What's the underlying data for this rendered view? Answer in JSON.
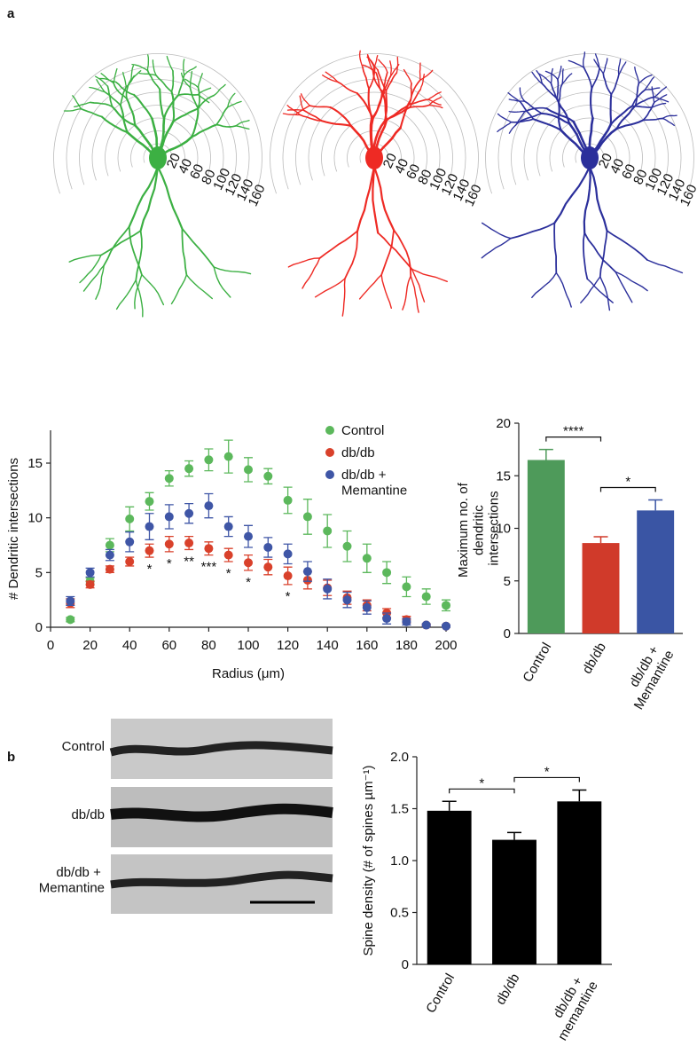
{
  "panel_labels": [
    "a",
    "b"
  ],
  "sholl_ring_labels": [
    20,
    40,
    60,
    80,
    100,
    120,
    140,
    160
  ],
  "micrograph_labels": [
    "Control",
    "db/db",
    "db/db + Memantine"
  ],
  "chart_data": [
    {
      "type": "scatter",
      "xlabel": "Radius (μm)",
      "ylabel": "# Dendritic intersections",
      "x": [
        10,
        20,
        30,
        40,
        50,
        60,
        70,
        80,
        90,
        100,
        110,
        120,
        130,
        140,
        150,
        160,
        170,
        180,
        190,
        200
      ],
      "series": [
        {
          "name": "Control",
          "color": "#5cb85c",
          "values": [
            0.7,
            4.2,
            7.5,
            9.9,
            11.5,
            13.6,
            14.5,
            15.3,
            15.6,
            14.4,
            13.8,
            11.6,
            10.1,
            8.8,
            7.4,
            6.3,
            5.0,
            3.7,
            2.8,
            2.0
          ],
          "errors": [
            0.2,
            0.3,
            0.6,
            1.1,
            0.8,
            0.7,
            0.7,
            1.0,
            1.5,
            1.1,
            0.7,
            1.2,
            1.6,
            1.5,
            1.4,
            1.3,
            1.0,
            0.9,
            0.7,
            0.5
          ]
        },
        {
          "name": "db/db",
          "color": "#d9412b",
          "values": [
            2.2,
            3.9,
            5.3,
            6.0,
            7.0,
            7.6,
            7.7,
            7.2,
            6.6,
            5.9,
            5.5,
            4.7,
            4.3,
            3.6,
            2.7,
            2.0,
            1.3,
            0.7,
            0.2,
            0.1
          ],
          "errors": [
            0.4,
            0.3,
            0.3,
            0.4,
            0.6,
            0.7,
            0.6,
            0.6,
            0.6,
            0.7,
            0.7,
            0.8,
            0.8,
            0.7,
            0.6,
            0.5,
            0.4,
            0.3,
            0.1,
            0.1
          ]
        },
        {
          "name": "db/db + Memantine",
          "color": "#3f56a6",
          "values": [
            2.4,
            5.0,
            6.6,
            7.8,
            9.2,
            10.1,
            10.4,
            11.1,
            9.2,
            8.3,
            7.3,
            6.7,
            5.1,
            3.5,
            2.5,
            1.8,
            0.8,
            0.5,
            0.2,
            0.1
          ],
          "errors": [
            0.4,
            0.4,
            0.5,
            0.9,
            1.2,
            1.1,
            0.9,
            1.1,
            0.9,
            1.0,
            0.9,
            0.9,
            0.9,
            0.9,
            0.7,
            0.6,
            0.5,
            0.3,
            0.1,
            0.1
          ]
        }
      ],
      "xlim": [
        0,
        200
      ],
      "xticks": [
        0,
        20,
        40,
        60,
        80,
        100,
        120,
        140,
        160,
        180,
        200
      ],
      "ylim": [
        0,
        18
      ],
      "yticks": [
        0,
        5,
        10,
        15
      ],
      "legend": "upper right",
      "annotations": [
        {
          "x": 50,
          "text": "*"
        },
        {
          "x": 60,
          "text": "*"
        },
        {
          "x": 70,
          "text": "**"
        },
        {
          "x": 80,
          "text": "***"
        },
        {
          "x": 90,
          "text": "*"
        },
        {
          "x": 100,
          "text": "*"
        },
        {
          "x": 120,
          "text": "*"
        }
      ]
    },
    {
      "type": "bar",
      "ylabel": "Maximum no. of dendritic intersections",
      "categories": [
        "Control",
        "db/db",
        "db/db + Memantine"
      ],
      "values": [
        16.5,
        8.6,
        11.7
      ],
      "errors": [
        1.0,
        0.6,
        1.0
      ],
      "colors": [
        "#4e9a5a",
        "#d03a2a",
        "#3a55a4"
      ],
      "ylim": [
        0,
        20
      ],
      "yticks": [
        0,
        5,
        10,
        15,
        20
      ],
      "significance": [
        {
          "from": 0,
          "to": 1,
          "label": "****"
        },
        {
          "from": 1,
          "to": 2,
          "label": "*"
        }
      ]
    },
    {
      "type": "bar",
      "ylabel": "Spine density (# of spines µm⁻¹)",
      "categories": [
        "Control",
        "db/db",
        "db/db + memantine"
      ],
      "values": [
        1.48,
        1.2,
        1.57
      ],
      "errors": [
        0.09,
        0.07,
        0.11
      ],
      "colors": [
        "#000000",
        "#000000",
        "#000000"
      ],
      "ylim": [
        0,
        2.0
      ],
      "yticks": [
        0,
        0.5,
        {
          "value": 1.0,
          "label": "1.0"
        },
        1.5,
        {
          "value": 2.0,
          "label": "2.0"
        }
      ],
      "significance": [
        {
          "from": 0,
          "to": 1,
          "label": "*"
        },
        {
          "from": 1,
          "to": 2,
          "label": "*"
        }
      ]
    }
  ]
}
